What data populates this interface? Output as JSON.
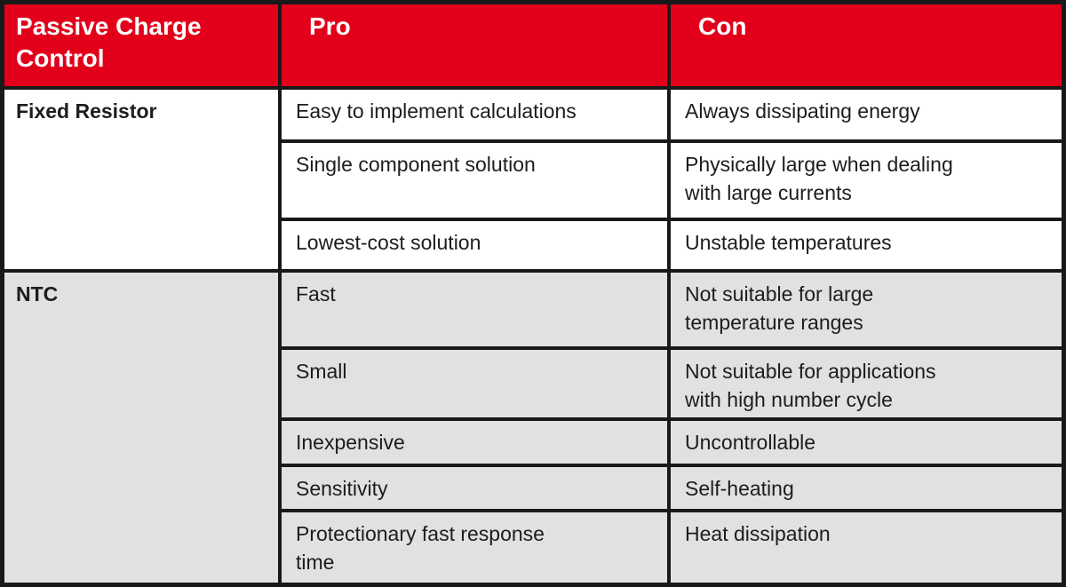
{
  "colors": {
    "header_red": "#e2001a",
    "ntc_row_gray": "#e1e1e2",
    "grid_black": "#191919",
    "header_text": "#ffffff",
    "body_text": "#1d1d1b"
  },
  "table": {
    "header": {
      "title": "Passive Charge\nControl",
      "pro": "Pro",
      "con": "Con"
    },
    "sections": [
      {
        "label": "Fixed Resistor",
        "rows": [
          {
            "pro": "Easy to implement calculations",
            "con": "Always dissipating energy"
          },
          {
            "pro": "Single component solution",
            "con": "Physically large when dealing\nwith large currents"
          },
          {
            "pro": "Lowest-cost solution",
            "con": "Unstable temperatures"
          }
        ]
      },
      {
        "label": "NTC",
        "rows": [
          {
            "pro": "Fast",
            "con": "Not suitable for large\ntemperature ranges"
          },
          {
            "pro": "Small",
            "con": "Not suitable for applications\nwith high number cycle"
          },
          {
            "pro": "Inexpensive",
            "con": "Uncontrollable"
          },
          {
            "pro": "Sensitivity",
            "con": "Self-heating"
          },
          {
            "pro": "Protectionary fast response\ntime",
            "con": "Heat dissipation"
          }
        ]
      }
    ]
  }
}
